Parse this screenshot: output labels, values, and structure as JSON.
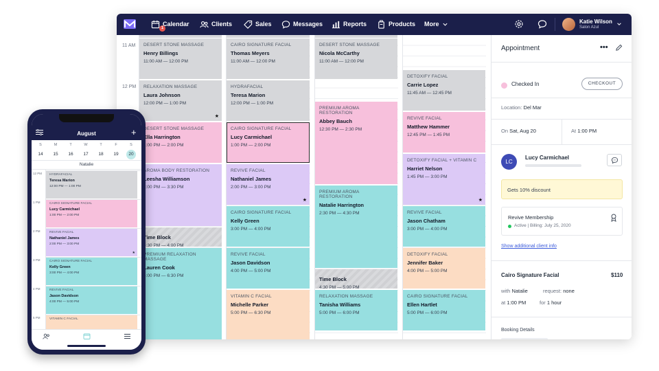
{
  "nav": {
    "items": [
      {
        "label": "Calendar",
        "icon": "calendar-icon"
      },
      {
        "label": "Clients",
        "icon": "clients-icon"
      },
      {
        "label": "Sales",
        "icon": "tag-icon"
      },
      {
        "label": "Messages",
        "icon": "message-icon"
      },
      {
        "label": "Reports",
        "icon": "chart-icon"
      },
      {
        "label": "Products",
        "icon": "products-icon"
      },
      {
        "label": "More",
        "icon": "chevron-down-icon"
      }
    ],
    "calendar_badge": "1",
    "user_name": "Katie Wilson",
    "user_location": "Salon Azul"
  },
  "calendar": {
    "times": [
      "11 AM",
      "12 PM"
    ],
    "columns": [
      [
        {
          "service": "Desert Stone Massage",
          "client": "Henry Billings",
          "time": "11:00 AM — 12:00 PM",
          "color": "gray",
          "star": false
        },
        {
          "service": "Relaxation Massage",
          "client": "Laura Johnson",
          "time": "12:00 PM — 1:00 PM",
          "color": "gray",
          "star": true
        },
        {
          "service": "Desert Stone Massage",
          "client": "Ella Harrington",
          "time": "1:00 PM — 2:00 PM",
          "color": "pink",
          "star": false
        },
        {
          "service": "Aroma Body Restoration",
          "client": "Leesha Williamson",
          "time": "2:00 PM — 3:30 PM",
          "color": "purple",
          "star": false
        },
        {
          "service": "",
          "client": "Time Block",
          "time": "3:30 PM — 4:00 PM",
          "color": "hatch",
          "star": false
        },
        {
          "service": "Premium Relaxation Massage",
          "client": "Lauren Cook",
          "time": "4:00 PM — 6:30 PM",
          "color": "teal",
          "star": true
        }
      ],
      [
        {
          "service": "Cairo Signature Facial",
          "client": "Thomas Meyers",
          "time": "11:00 AM — 12:00 PM",
          "color": "gray",
          "star": false
        },
        {
          "service": "Hydrafacial",
          "client": "Teresa Marion",
          "time": "12:00 PM — 1:00 PM",
          "color": "gray",
          "star": false
        },
        {
          "service": "Cairo Signature Facial",
          "client": "Lucy Carmichael",
          "time": "1:00 PM — 2:00 PM",
          "color": "pink",
          "star": false,
          "selected": true
        },
        {
          "service": "Revive Facial",
          "client": "Nathaniel James",
          "time": "2:00 PM — 3:00 PM",
          "color": "purple",
          "star": true
        },
        {
          "service": "Cairo Signature Facial",
          "client": "Kelly Green",
          "time": "3:00 PM — 4:00 PM",
          "color": "teal",
          "star": false
        },
        {
          "service": "Revive Facial",
          "client": "Jason Davidson",
          "time": "4:00 PM — 5:00 PM",
          "color": "teal",
          "star": false
        },
        {
          "service": "Vitamin C Facial",
          "client": "Michelle Parker",
          "time": "5:00 PM — 6:30 PM",
          "color": "peach",
          "star": false
        }
      ],
      [
        {
          "service": "Desert Stone Massage",
          "client": "Nicola McCarthy",
          "time": "11:00 AM — 12:00 PM",
          "color": "gray",
          "star": false
        },
        {
          "service": "Premium Aroma Restoration",
          "client": "Abbey Bauch",
          "time": "12:30 PM — 2:30 PM",
          "color": "pink",
          "star": false
        },
        {
          "service": "Premium Aroma Restoration",
          "client": "Natalie Harrington",
          "time": "2:30 PM — 4:30 PM",
          "color": "teal",
          "star": false
        },
        {
          "service": "",
          "client": "Time Block",
          "time": "4:30 PM — 5:00 PM",
          "color": "hatch",
          "star": false
        },
        {
          "service": "Relaxation Massage",
          "client": "Tanisha Williams",
          "time": "5:00 PM — 6:00 PM",
          "color": "teal",
          "star": false
        }
      ],
      [
        {
          "service": "Detoxify Facial",
          "client": "Carrie Lopez",
          "time": "11:45 AM — 12:45 PM",
          "color": "gray",
          "star": false
        },
        {
          "service": "Revive Facial",
          "client": "Matthew Hammer",
          "time": "12:45 PM — 1:45 PM",
          "color": "pink",
          "star": false
        },
        {
          "service": "Detoxify Facial + Vitamin C",
          "client": "Harriet Nelson",
          "time": "1:45 PM — 3:00 PM",
          "color": "purple",
          "star": true
        },
        {
          "service": "Revive Facial",
          "client": "Jason Chatham",
          "time": "3:00 PM — 4:00 PM",
          "color": "teal",
          "star": false
        },
        {
          "service": "Detoxify Facial",
          "client": "Jennifer Baker",
          "time": "4:00 PM — 5:00 PM",
          "color": "peach",
          "star": false
        },
        {
          "service": "Cairo Signature Facial",
          "client": "Ellen Hartlet",
          "time": "5:00 PM — 6:00 PM",
          "color": "teal",
          "star": false
        }
      ]
    ]
  },
  "panel": {
    "title": "Appointment",
    "status": "Checked In",
    "checkout_label": "CHECKOUT",
    "location_label": "Location:",
    "location_value": "Del Mar",
    "on_label": "On",
    "on_value": "Sat, Aug 20",
    "at_label": "At",
    "at_value": "1:00 PM",
    "client_initials": "LC",
    "client_name": "Lucy Carmichael",
    "discount": "Gets 10% discount",
    "membership_title": "Revive Membership",
    "membership_status": "Active",
    "membership_billing": "Billing: July 25, 2020",
    "more_info_link": "Show additional client info",
    "service_name": "Cairo Signature Facial",
    "service_price": "$110",
    "with_label": "with",
    "with_value": "Natalie",
    "request_label": "request:",
    "request_value": "none",
    "at2_label": "at",
    "at2_value": "1:00 PM",
    "for_label": "for",
    "for_value": "1 hour",
    "booking_details": "Booking Details"
  },
  "phone": {
    "month": "August",
    "week_days": [
      "S",
      "M",
      "T",
      "W",
      "T",
      "F",
      "S"
    ],
    "week_dates": [
      "14",
      "15",
      "16",
      "17",
      "18",
      "19",
      "20"
    ],
    "selected_index": 6,
    "staff": "Natalie",
    "times": [
      "12 PM",
      "1 PM",
      "2 PM",
      "3 PM",
      "4 PM",
      "5 PM"
    ],
    "appointments": [
      {
        "service": "Hydrafacial",
        "client": "Teresa Marion",
        "time": "12:00 PM — 1:00 PM",
        "color": "gray",
        "star": false
      },
      {
        "service": "Cairo Signature Facial",
        "client": "Lucy Carmichael",
        "time": "1:00 PM — 2:00 PM",
        "color": "pink",
        "star": false
      },
      {
        "service": "Revive Facial",
        "client": "Nathaniel James",
        "time": "2:00 PM — 3:00 PM",
        "color": "purple",
        "star": true
      },
      {
        "service": "Cairo Signature Facial",
        "client": "Kelly Green",
        "time": "3:00 PM — 4:00 PM",
        "color": "teal",
        "star": false
      },
      {
        "service": "Revive Facial",
        "client": "Jason Davidson",
        "time": "4:00 PM — 5:00 PM",
        "color": "teal",
        "star": false
      },
      {
        "service": "Vitamin C Facial",
        "client": "",
        "time": "",
        "color": "peach",
        "star": false
      }
    ]
  }
}
